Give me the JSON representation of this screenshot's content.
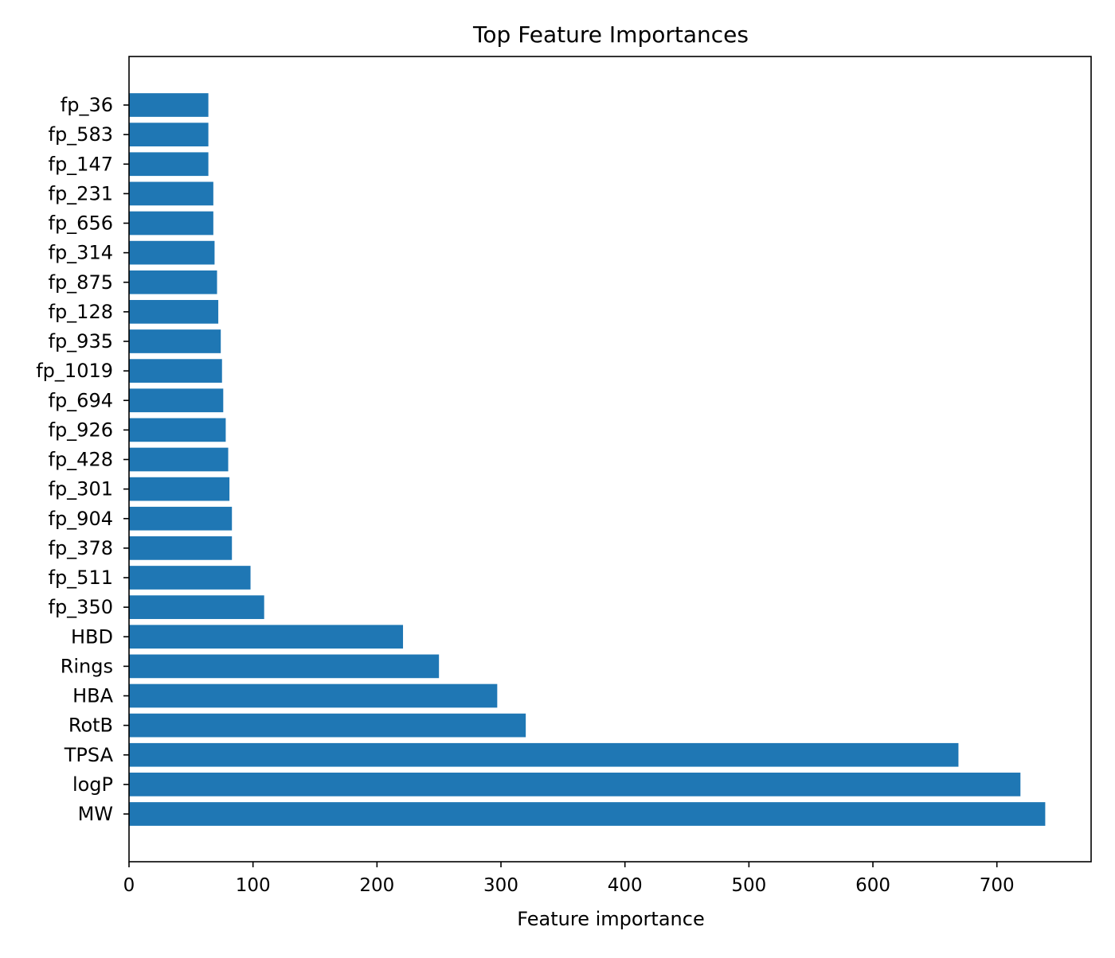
{
  "chart_data": {
    "type": "bar",
    "orientation": "horizontal",
    "title": "Top Feature Importances",
    "xlabel": "Feature importance",
    "ylabel": "",
    "xlim": [
      0,
      776
    ],
    "xticks": [
      0,
      100,
      200,
      300,
      400,
      500,
      600,
      700
    ],
    "grid": false,
    "legend": "none",
    "bar_color": "#1f77b4",
    "categories": [
      "MW",
      "logP",
      "TPSA",
      "RotB",
      "HBA",
      "Rings",
      "HBD",
      "fp_350",
      "fp_511",
      "fp_378",
      "fp_904",
      "fp_301",
      "fp_428",
      "fp_926",
      "fp_694",
      "fp_1019",
      "fp_935",
      "fp_128",
      "fp_875",
      "fp_314",
      "fp_656",
      "fp_231",
      "fp_147",
      "fp_583",
      "fp_36"
    ],
    "values": [
      739,
      719,
      669,
      320,
      297,
      250,
      221,
      109,
      98,
      83,
      83,
      81,
      80,
      78,
      76,
      75,
      74,
      72,
      71,
      69,
      68,
      68,
      64,
      64,
      64
    ]
  }
}
